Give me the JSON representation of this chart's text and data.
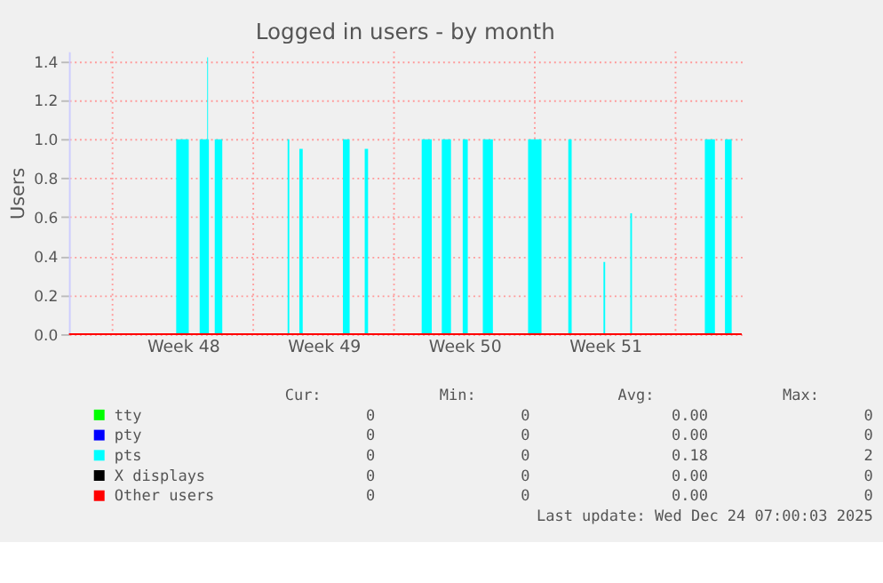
{
  "chart_data": {
    "type": "area",
    "title": "Logged in users - by month",
    "ylabel": "Users",
    "xlim": [
      "2025-11-20T20:00",
      "2025-12-24T07:00"
    ],
    "ylim": [
      0,
      1.45
    ],
    "xticks": [
      {
        "value": "2025-11-26T12:00",
        "label": "Week 48"
      },
      {
        "value": "2025-12-03T12:00",
        "label": "Week 49"
      },
      {
        "value": "2025-12-10T12:00",
        "label": "Week 50"
      },
      {
        "value": "2025-12-17T12:00",
        "label": "Week 51"
      }
    ],
    "yticks": [
      {
        "value": 0,
        "label": "0.0"
      },
      0.2,
      0.4,
      0.6,
      0.8,
      {
        "value": 1,
        "label": "1.0"
      },
      1.2,
      1.4
    ],
    "grid": "y",
    "legend": "bottom",
    "ref_lines": [
      {
        "axis": "x",
        "value": "2025-11-23",
        "color": "#ff9999",
        "line_style": "dotted"
      },
      {
        "axis": "x",
        "value": "2025-11-30",
        "color": "#ff9999",
        "line_style": "dotted"
      },
      {
        "axis": "x",
        "value": "2025-12-07",
        "color": "#ff9999",
        "line_style": "dotted"
      },
      {
        "axis": "x",
        "value": "2025-12-14",
        "color": "#ff9999",
        "line_style": "dotted"
      },
      {
        "axis": "x",
        "value": "2025-12-21",
        "color": "#ff9999",
        "line_style": "dotted"
      }
    ],
    "series": [
      {
        "name": "tty",
        "color": "#00ff00",
        "type": "line",
        "values": [
          null
        ]
      },
      {
        "name": "pty",
        "color": "#0000ff",
        "type": "line",
        "values": [
          null
        ]
      },
      {
        "name": "pts",
        "color": "#00ffff",
        "x": [
          "2025-11-20T20:00",
          "2025-11-26T04:00",
          "2025-11-26T19:00",
          "2025-11-27T08:00",
          "2025-11-27T17:00",
          "2025-11-27T18:00",
          "2025-11-27T19:00",
          "2025-11-28T02:00",
          "2025-11-28T11:00",
          "2025-12-01T17:00",
          "2025-12-01T19:00",
          "2025-12-02T07:00",
          "2025-12-02T11:00",
          "2025-12-04T11:00",
          "2025-12-04T19:00",
          "2025-12-05T13:00",
          "2025-12-05T17:00",
          "2025-12-08T09:00",
          "2025-12-08T21:00",
          "2025-12-09T09:00",
          "2025-12-09T20:00",
          "2025-12-10T10:00",
          "2025-12-10T16:00",
          "2025-12-11T10:00",
          "2025-12-11T22:00",
          "2025-12-13T16:00",
          "2025-12-14T08:00",
          "2025-12-15T16:00",
          "2025-12-15T20:00",
          "2025-12-17T10:00",
          "2025-12-17T12:00",
          "2025-12-18T18:00",
          "2025-12-18T20:00",
          "2025-12-22T11:00",
          "2025-12-22T23:00",
          "2025-12-23T11:00",
          "2025-12-23T19:00",
          "2025-12-24T07:00"
        ],
        "values": [
          0,
          1.0,
          0,
          1.0,
          1.42,
          1.0,
          0,
          1.0,
          0,
          1.0,
          0,
          0.95,
          0,
          1.0,
          0,
          0.95,
          0,
          1.0,
          0,
          1.0,
          0,
          1.0,
          0,
          1.0,
          0,
          1.0,
          0,
          1.0,
          0,
          0.37,
          0,
          0.62,
          0,
          1.0,
          0,
          1.0,
          0,
          0
        ]
      },
      {
        "name": "X displays",
        "color": "#000000",
        "type": "line",
        "values": [
          null
        ]
      },
      {
        "name": "Other users",
        "color": "#ff0000",
        "type": "line",
        "x": [
          "2025-11-20T20:00",
          "2025-12-24T07:00"
        ],
        "values": [
          0,
          0
        ]
      }
    ],
    "annotations": [
      "Cur:",
      "Min:",
      "Avg:",
      "Max:",
      "0",
      "0",
      "0.00",
      "0",
      "0",
      "0",
      "0.00",
      "0",
      "0",
      "0",
      "0.18",
      "2",
      "0",
      "0",
      "0.00",
      "0",
      "0",
      "0",
      "0.00",
      "0",
      "Last update: Wed Dec 24 07:00:03 2025"
    ]
  }
}
